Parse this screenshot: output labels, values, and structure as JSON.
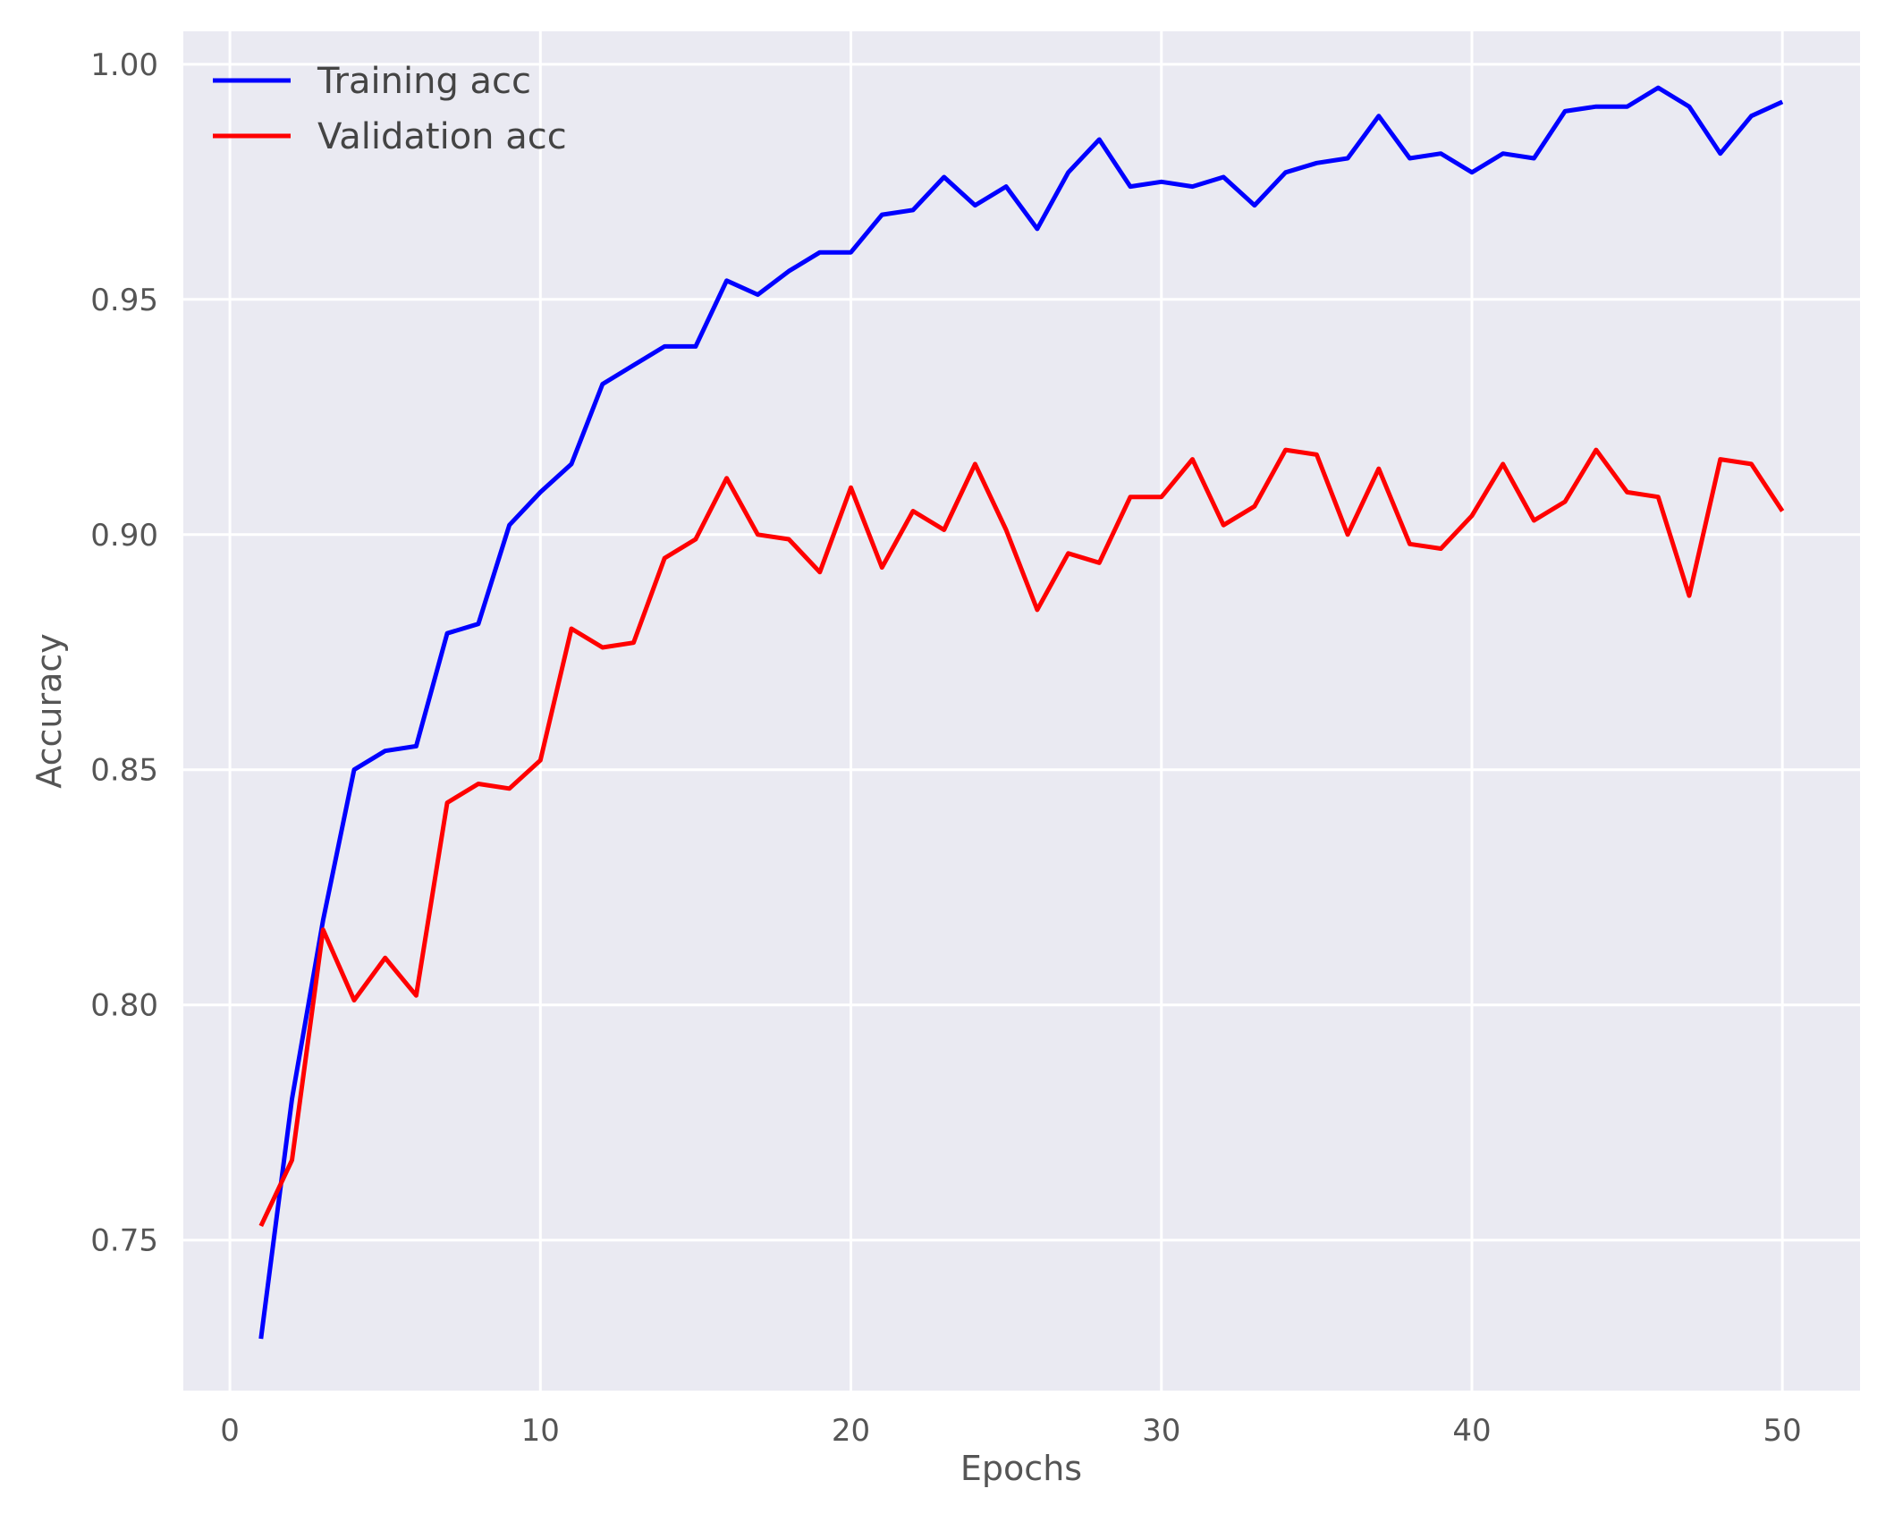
{
  "chart_data": {
    "type": "line",
    "title": "",
    "xlabel": "Epochs",
    "ylabel": "Accuracy",
    "xlim": [
      -1.5,
      52.5
    ],
    "ylim": [
      0.718,
      1.007
    ],
    "xticks": [
      0,
      10,
      20,
      30,
      40,
      50
    ],
    "yticks": [
      0.75,
      0.8,
      0.85,
      0.9,
      0.95,
      1.0
    ],
    "xtick_labels": [
      "0",
      "10",
      "20",
      "30",
      "40",
      "50"
    ],
    "ytick_labels": [
      "0.75",
      "0.80",
      "0.85",
      "0.90",
      "0.95",
      "1.00"
    ],
    "grid": true,
    "legend_position": "upper-left",
    "background_color": "#eaeaf2",
    "grid_color": "#ffffff",
    "x": [
      1,
      2,
      3,
      4,
      5,
      6,
      7,
      8,
      9,
      10,
      11,
      12,
      13,
      14,
      15,
      16,
      17,
      18,
      19,
      20,
      21,
      22,
      23,
      24,
      25,
      26,
      27,
      28,
      29,
      30,
      31,
      32,
      33,
      34,
      35,
      36,
      37,
      38,
      39,
      40,
      41,
      42,
      43,
      44,
      45,
      46,
      47,
      48,
      49,
      50
    ],
    "series": [
      {
        "name": "Training acc",
        "color": "#0000ff",
        "values": [
          0.729,
          0.78,
          0.818,
          0.85,
          0.854,
          0.855,
          0.879,
          0.881,
          0.902,
          0.909,
          0.915,
          0.932,
          0.936,
          0.94,
          0.94,
          0.954,
          0.951,
          0.956,
          0.96,
          0.96,
          0.968,
          0.969,
          0.976,
          0.97,
          0.974,
          0.965,
          0.977,
          0.984,
          0.974,
          0.975,
          0.974,
          0.976,
          0.97,
          0.977,
          0.979,
          0.98,
          0.989,
          0.98,
          0.981,
          0.977,
          0.981,
          0.98,
          0.99,
          0.991,
          0.991,
          0.995,
          0.991,
          0.981,
          0.989,
          0.992
        ]
      },
      {
        "name": "Validation acc",
        "color": "#ff0000",
        "values": [
          0.753,
          0.767,
          0.816,
          0.801,
          0.81,
          0.802,
          0.843,
          0.847,
          0.846,
          0.852,
          0.88,
          0.876,
          0.877,
          0.895,
          0.899,
          0.912,
          0.9,
          0.899,
          0.892,
          0.91,
          0.893,
          0.905,
          0.901,
          0.915,
          0.901,
          0.884,
          0.896,
          0.894,
          0.908,
          0.908,
          0.916,
          0.902,
          0.906,
          0.918,
          0.917,
          0.9,
          0.914,
          0.898,
          0.897,
          0.904,
          0.915,
          0.903,
          0.907,
          0.918,
          0.909,
          0.908,
          0.887,
          0.916,
          0.915,
          0.905
        ]
      }
    ]
  }
}
